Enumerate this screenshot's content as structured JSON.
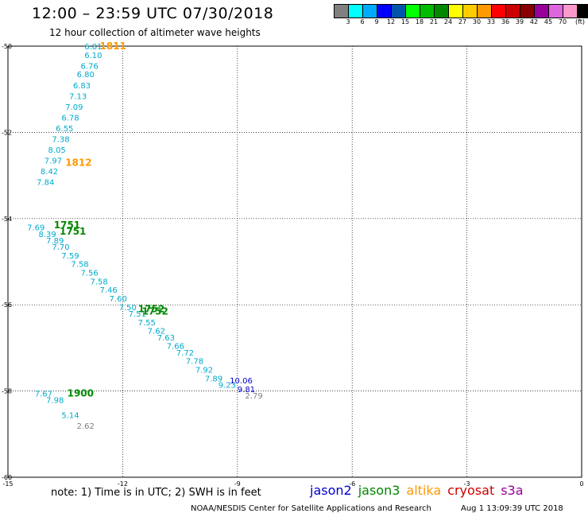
{
  "header": {
    "title": "12:00 – 23:59 UTC 07/30/2018",
    "subtitle": "12 hour collection of altimeter wave heights"
  },
  "scale": {
    "unit": "(ft)",
    "colors": [
      "#808080",
      "#00ffff",
      "#00aaff",
      "#0000ff",
      "#0055aa",
      "#00ff00",
      "#00bb00",
      "#008800",
      "#ffff00",
      "#ffcc00",
      "#ff9900",
      "#ff0000",
      "#cc0000",
      "#880000",
      "#990099",
      "#dd66dd",
      "#ff99cc",
      "#000000"
    ],
    "labels": [
      "3",
      "6",
      "9",
      "12",
      "15",
      "18",
      "21",
      "24",
      "27",
      "30",
      "33",
      "36",
      "39",
      "42",
      "45",
      "70"
    ]
  },
  "chart_data": {
    "type": "scatter",
    "xlim": [
      -15,
      0
    ],
    "ylim": [
      -60,
      -50
    ],
    "x_ticks": [
      -15,
      -12,
      -9,
      -6,
      -3,
      0
    ],
    "y_ticks": [
      -50,
      -52,
      -54,
      -56,
      -58,
      -60
    ],
    "x_tick_labels": [
      "-15",
      "-12",
      "-9",
      "-6",
      "-3",
      "0"
    ],
    "y_tick_labels": [
      "-50",
      "-52",
      "-54",
      "-56",
      "-58",
      "-60"
    ],
    "grid": true,
    "series": [
      {
        "name": "altika",
        "color": "#00aacc",
        "points": [
          {
            "lon": -13.0,
            "lat": -50.0,
            "label": "6.81"
          },
          {
            "lon": -13.0,
            "lat": -50.2,
            "label": "6.10"
          },
          {
            "lon": -13.1,
            "lat": -50.45,
            "label": "6.76"
          },
          {
            "lon": -13.2,
            "lat": -50.65,
            "label": "6.80"
          },
          {
            "lon": -13.3,
            "lat": -50.9,
            "label": "6.83"
          },
          {
            "lon": -13.4,
            "lat": -51.15,
            "label": "7.13"
          },
          {
            "lon": -13.5,
            "lat": -51.4,
            "label": "7.09"
          },
          {
            "lon": -13.6,
            "lat": -51.65,
            "label": "6.78"
          },
          {
            "lon": -13.75,
            "lat": -51.9,
            "label": "6.55"
          },
          {
            "lon": -13.85,
            "lat": -52.15,
            "label": "7.38"
          },
          {
            "lon": -13.95,
            "lat": -52.4,
            "label": "8.05"
          },
          {
            "lon": -14.05,
            "lat": -52.65,
            "label": "7.97"
          },
          {
            "lon": -14.15,
            "lat": -52.9,
            "label": "8.42"
          },
          {
            "lon": -14.25,
            "lat": -53.15,
            "label": "7.84"
          }
        ]
      },
      {
        "name": "jason3",
        "color": "#00aacc",
        "points": [
          {
            "lon": -14.5,
            "lat": -54.2,
            "label": "7.69"
          },
          {
            "lon": -14.2,
            "lat": -54.35,
            "label": "8.39"
          },
          {
            "lon": -14.0,
            "lat": -54.5,
            "label": "7.89"
          },
          {
            "lon": -13.85,
            "lat": -54.65,
            "label": "7.70"
          },
          {
            "lon": -13.6,
            "lat": -54.85,
            "label": "7.59"
          },
          {
            "lon": -13.35,
            "lat": -55.05,
            "label": "7.58"
          },
          {
            "lon": -13.1,
            "lat": -55.25,
            "label": "7.56"
          },
          {
            "lon": -12.85,
            "lat": -55.45,
            "label": "7.58"
          },
          {
            "lon": -12.6,
            "lat": -55.65,
            "label": "7.46"
          },
          {
            "lon": -12.35,
            "lat": -55.85,
            "label": "7.60"
          },
          {
            "lon": -12.1,
            "lat": -56.05,
            "label": "7.50"
          },
          {
            "lon": -11.85,
            "lat": -56.2,
            "label": "7.51"
          },
          {
            "lon": -11.6,
            "lat": -56.4,
            "label": "7.55"
          },
          {
            "lon": -11.35,
            "lat": -56.6,
            "label": "7.62"
          },
          {
            "lon": -11.1,
            "lat": -56.75,
            "label": "7.63"
          },
          {
            "lon": -10.85,
            "lat": -56.95,
            "label": "7.66"
          },
          {
            "lon": -10.6,
            "lat": -57.1,
            "label": "7.72"
          },
          {
            "lon": -10.35,
            "lat": -57.3,
            "label": "7.78"
          },
          {
            "lon": -10.1,
            "lat": -57.5,
            "label": "7.92"
          },
          {
            "lon": -9.85,
            "lat": -57.7,
            "label": "7.89"
          },
          {
            "lon": -9.5,
            "lat": -57.85,
            "label": "9.23"
          }
        ]
      },
      {
        "name": "jason2",
        "color": "#0000cc",
        "points": [
          {
            "lon": -9.2,
            "lat": -57.75,
            "label": "10.06"
          },
          {
            "lon": -9.0,
            "lat": -57.95,
            "label": "9.81"
          }
        ]
      },
      {
        "name": "cryosat",
        "color": "#00aacc",
        "points": [
          {
            "lon": -14.3,
            "lat": -58.05,
            "label": "7.67"
          },
          {
            "lon": -14.0,
            "lat": -58.2,
            "label": "7.98"
          },
          {
            "lon": -13.6,
            "lat": -58.55,
            "label": "5.14"
          }
        ]
      },
      {
        "name": "s3a",
        "color": "#808080",
        "points": [
          {
            "lon": -8.8,
            "lat": -58.1,
            "label": "2.79"
          },
          {
            "lon": -13.2,
            "lat": -58.8,
            "label": "2.62"
          }
        ]
      }
    ],
    "time_labels": [
      {
        "lon": -12.6,
        "lat": -50.0,
        "text": "1811",
        "color": "#ff9900"
      },
      {
        "lon": -13.5,
        "lat": -52.7,
        "text": "1812",
        "color": "#ff9900"
      },
      {
        "lon": -13.8,
        "lat": -54.15,
        "text": "1751",
        "color": "#008800"
      },
      {
        "lon": -13.65,
        "lat": -54.3,
        "text": "1751",
        "color": "#008800"
      },
      {
        "lon": -11.6,
        "lat": -56.1,
        "text": "1752",
        "color": "#008800"
      },
      {
        "lon": -11.5,
        "lat": -56.15,
        "text": "1752",
        "color": "#008800"
      },
      {
        "lon": -13.45,
        "lat": -58.05,
        "text": "1900",
        "color": "#008800"
      }
    ]
  },
  "footer": {
    "note": "note:  1) Time is in UTC; 2) SWH is in feet",
    "legend": [
      {
        "name": "jason2",
        "color": "#0000cc"
      },
      {
        "name": "jason3",
        "color": "#008800"
      },
      {
        "name": "altika",
        "color": "#ff9900"
      },
      {
        "name": "cryosat",
        "color": "#cc0000"
      },
      {
        "name": "s3a",
        "color": "#990099"
      }
    ],
    "credit": "NOAA/NESDIS Center for Satellite Applications and Research",
    "timestamp": "Aug  1 13:09:39 UTC 2018"
  }
}
